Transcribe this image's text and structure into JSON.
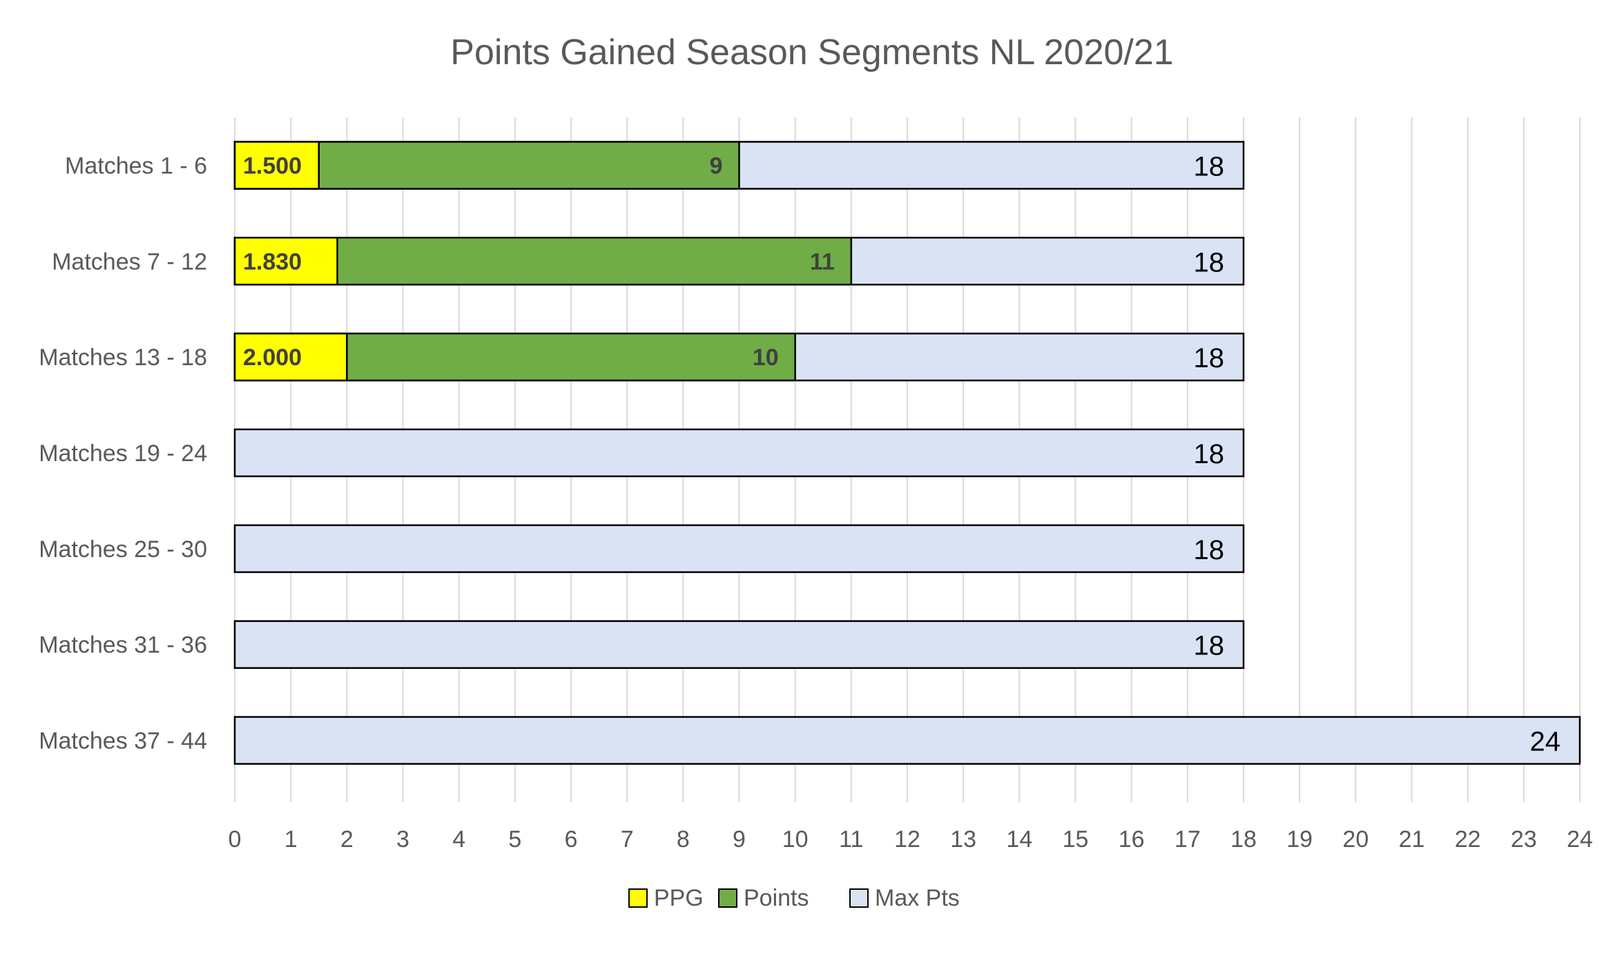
{
  "chart_data": {
    "type": "bar",
    "orientation": "horizontal",
    "stacking": "overlay",
    "title": "Points Gained Season Segments NL 2020/21",
    "xlabel": "",
    "ylabel": "",
    "xlim": [
      0,
      24
    ],
    "x_ticks": [
      0,
      1,
      2,
      3,
      4,
      5,
      6,
      7,
      8,
      9,
      10,
      11,
      12,
      13,
      14,
      15,
      16,
      17,
      18,
      19,
      20,
      21,
      22,
      23,
      24
    ],
    "grid": true,
    "legend_position": "bottom",
    "categories": [
      "Matches 1 - 6",
      "Matches 7 - 12",
      "Matches 13 - 18",
      "Matches 19 - 24",
      "Matches 25 - 30",
      "Matches 31 - 36",
      "Matches 37 - 44"
    ],
    "series": [
      {
        "name": "PPG",
        "color": "#ffff00",
        "values": [
          1.5,
          1.83,
          2.0,
          null,
          null,
          null,
          null
        ],
        "labels": [
          "1.500",
          "1.830",
          "2.000",
          "",
          "",
          "",
          ""
        ]
      },
      {
        "name": "Points",
        "color": "#70ad47",
        "values": [
          9,
          11,
          10,
          null,
          null,
          null,
          null
        ],
        "labels": [
          "9",
          "11",
          "10",
          "",
          "",
          "",
          ""
        ]
      },
      {
        "name": "Max Pts",
        "color": "#dae3f3",
        "values": [
          18,
          18,
          18,
          18,
          18,
          18,
          24
        ],
        "labels": [
          "18",
          "18",
          "18",
          "18",
          "18",
          "18",
          "24"
        ]
      }
    ]
  }
}
